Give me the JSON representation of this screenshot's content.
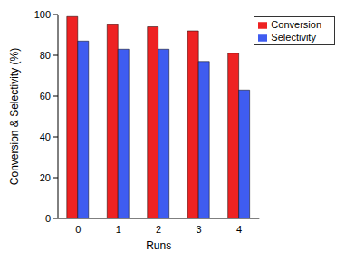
{
  "chart_data": {
    "type": "bar",
    "x_label": "Runs",
    "y_label": "Conversion & Selectivity (%)",
    "categories": [
      "0",
      "1",
      "2",
      "3",
      "4"
    ],
    "series": [
      {
        "name": "Conversion",
        "color": "#ee2222",
        "values": [
          99,
          95,
          94,
          92,
          81
        ]
      },
      {
        "name": "Selectivity",
        "color": "#3f5cf0",
        "values": [
          87,
          83,
          83,
          77,
          63
        ]
      }
    ],
    "ylim": [
      0,
      100
    ],
    "yticks": [
      0,
      20,
      40,
      60,
      80,
      100
    ],
    "legend": "upper right",
    "grid": false
  }
}
